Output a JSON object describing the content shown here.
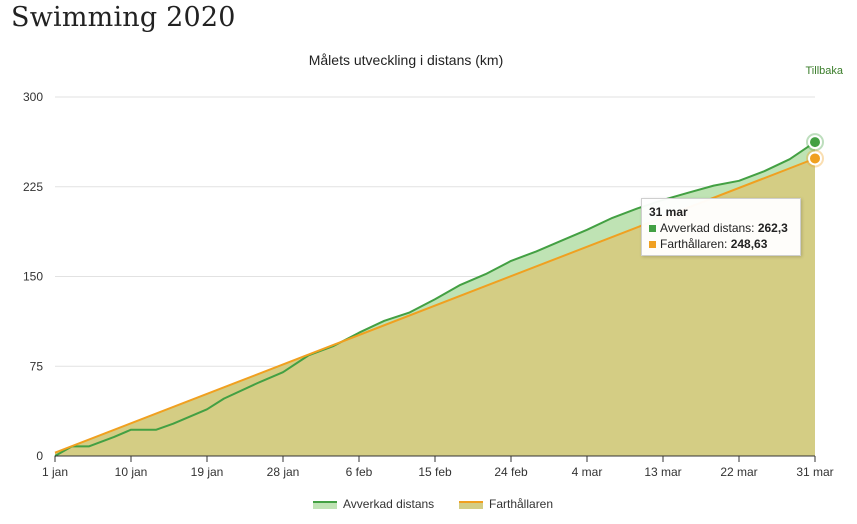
{
  "page": {
    "title": "Swimming 2020",
    "back_label": "Tillbaka"
  },
  "tooltip": {
    "date": "31 mar",
    "rows": [
      {
        "label": "Avverkad distans: ",
        "value": "262,3",
        "color": "#43a043"
      },
      {
        "label": "Farthållaren: ",
        "value": "248,63",
        "color": "#f0a020"
      }
    ]
  },
  "chart_data": {
    "type": "area",
    "title": "Målets utveckling i distans (km)",
    "xlabel": "",
    "ylabel": "",
    "ylim": [
      0,
      300
    ],
    "y_ticks": [
      0,
      75,
      150,
      225,
      300
    ],
    "x_ticks": [
      "1 jan",
      "10 jan",
      "19 jan",
      "28 jan",
      "6 feb",
      "15 feb",
      "24 feb",
      "4 mar",
      "13 mar",
      "22 mar",
      "31 mar"
    ],
    "grid": true,
    "legend_position": "bottom",
    "series": [
      {
        "name": "Avverkad distans",
        "color": "#43a043",
        "fill": "#bfe3b4",
        "x": [
          "1 jan",
          "3 jan",
          "5 jan",
          "8 jan",
          "10 jan",
          "13 jan",
          "15 jan",
          "19 jan",
          "21 jan",
          "25 jan",
          "28 jan",
          "31 jan",
          "3 feb",
          "6 feb",
          "9 feb",
          "12 feb",
          "15 feb",
          "18 feb",
          "21 feb",
          "24 feb",
          "27 feb",
          "1 mar",
          "4 mar",
          "7 mar",
          "10 mar",
          "13 mar",
          "16 mar",
          "19 mar",
          "22 mar",
          "25 mar",
          "28 mar",
          "31 mar"
        ],
        "values": [
          0,
          8,
          8,
          16,
          22,
          22,
          27,
          39,
          48,
          61,
          70,
          84,
          92,
          103,
          113,
          120,
          131,
          143,
          152,
          163,
          171,
          180,
          189,
          199,
          207,
          214,
          220,
          226,
          230,
          238,
          248,
          262.3
        ]
      },
      {
        "name": "Farthållaren",
        "color": "#f0a020",
        "fill": "#d4cd84",
        "x": [
          "1 jan",
          "31 mar"
        ],
        "values": [
          2.73,
          248.63
        ]
      }
    ]
  }
}
